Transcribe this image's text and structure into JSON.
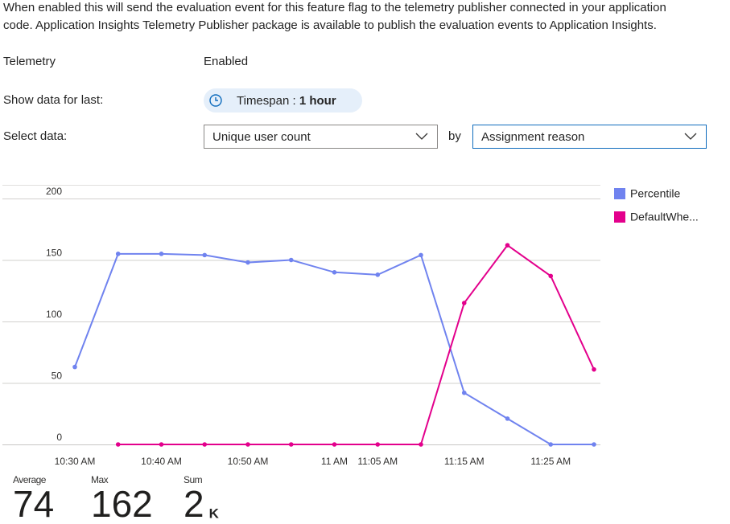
{
  "description": [
    "When enabled this will send the evaluation event for this feature flag to the telemetry publisher connected in your application",
    "code. Application Insights Telemetry Publisher package is available to publish the evaluation events to Application Insights."
  ],
  "telemetry": {
    "label": "Telemetry",
    "value": "Enabled"
  },
  "timespan": {
    "label": "Show data for last:",
    "prefix": "Timespan : ",
    "value": "1 hour"
  },
  "select_data": {
    "label": "Select data:",
    "metric": "Unique user count",
    "by": "by",
    "group": "Assignment reason"
  },
  "chart_data": {
    "type": "line",
    "categories": [
      "10:30 AM",
      null,
      "10:40 AM",
      null,
      "10:50 AM",
      null,
      "11 AM",
      "11:05 AM",
      null,
      "11:15 AM",
      null,
      "11:25 AM",
      null
    ],
    "series": [
      {
        "name": "Percentile",
        "color": "#7083ef",
        "values": [
          63,
          155,
          155,
          154,
          148,
          150,
          140,
          138,
          154,
          42,
          21,
          0,
          0
        ]
      },
      {
        "name": "DefaultWhe...",
        "color": "#e3008c",
        "values": [
          null,
          0,
          0,
          0,
          0,
          0,
          0,
          0,
          0,
          115,
          162,
          137,
          61
        ]
      }
    ],
    "ylim": [
      0,
      200
    ],
    "yticks": [
      0,
      50,
      100,
      150,
      200
    ],
    "grid": true
  },
  "summary": [
    {
      "label": "Average",
      "value": "74"
    },
    {
      "label": "Max",
      "value": "162"
    },
    {
      "label": "Sum",
      "value": "2",
      "unit": "K"
    }
  ]
}
